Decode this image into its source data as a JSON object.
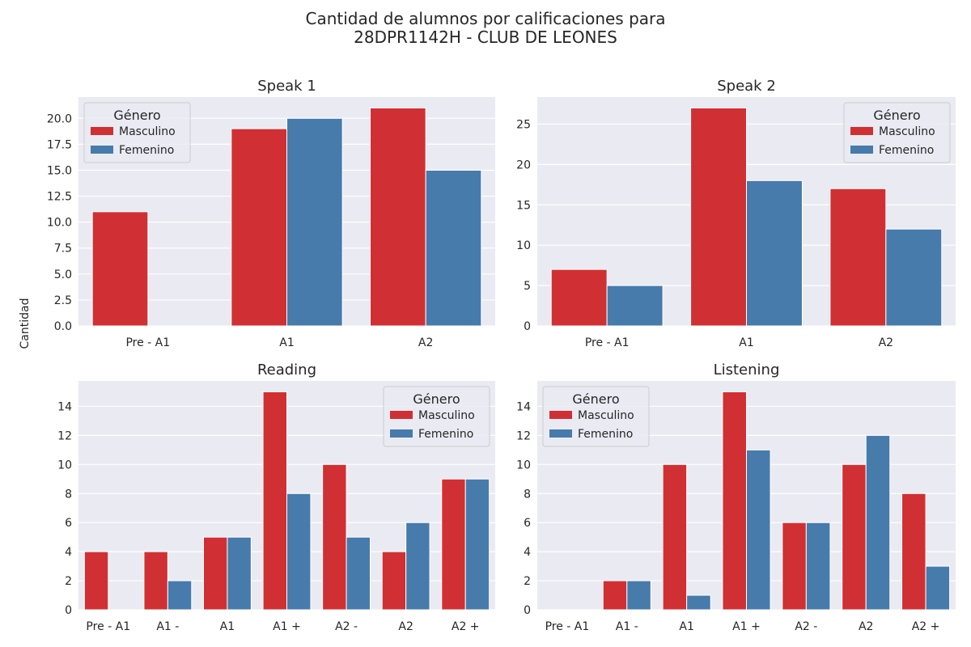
{
  "suptitle": {
    "line1": "Cantidad de alumnos por calificaciones para",
    "line2": "28DPR1142H - CLUB DE LEONES"
  },
  "ylabel": "Cantidad",
  "legend": {
    "title": "Género",
    "entries": [
      "Masculino",
      "Femenino"
    ]
  },
  "colors": {
    "masculino": "#d03033",
    "femenino": "#467bab",
    "plot_bg": "#eaeaf2",
    "grid": "#ffffff"
  },
  "chart_data": [
    {
      "type": "bar",
      "title": "Speak 1",
      "categories": [
        "Pre - A1",
        "A1",
        "A2"
      ],
      "series": [
        {
          "name": "Masculino",
          "values": [
            11,
            19,
            21
          ]
        },
        {
          "name": "Femenino",
          "values": [
            0,
            20,
            15
          ]
        }
      ],
      "ylim": [
        0,
        22.05
      ],
      "yticks": [
        "0.0",
        "2.5",
        "5.0",
        "7.5",
        "10.0",
        "12.5",
        "15.0",
        "17.5",
        "20.0"
      ],
      "ytick_values": [
        0,
        2.5,
        5,
        7.5,
        10,
        12.5,
        15,
        17.5,
        20
      ],
      "legend_position": "top-left",
      "grid": true
    },
    {
      "type": "bar",
      "title": "Speak 2",
      "categories": [
        "Pre - A1",
        "A1",
        "A2"
      ],
      "series": [
        {
          "name": "Masculino",
          "values": [
            7,
            27,
            17
          ]
        },
        {
          "name": "Femenino",
          "values": [
            5,
            18,
            12
          ]
        }
      ],
      "ylim": [
        0,
        28.35
      ],
      "yticks": [
        "0",
        "5",
        "10",
        "15",
        "20",
        "25"
      ],
      "ytick_values": [
        0,
        5,
        10,
        15,
        20,
        25
      ],
      "legend_position": "top-right",
      "grid": true
    },
    {
      "type": "bar",
      "title": "Reading",
      "categories": [
        "Pre - A1",
        "A1 -",
        "A1",
        "A1 +",
        "A2 -",
        "A2",
        "A2 +"
      ],
      "series": [
        {
          "name": "Masculino",
          "values": [
            4,
            4,
            5,
            15,
            10,
            4,
            9
          ]
        },
        {
          "name": "Femenino",
          "values": [
            0,
            2,
            5,
            8,
            5,
            6,
            9
          ]
        }
      ],
      "ylim": [
        0,
        15.75
      ],
      "yticks": [
        "0",
        "2",
        "4",
        "6",
        "8",
        "10",
        "12",
        "14"
      ],
      "ytick_values": [
        0,
        2,
        4,
        6,
        8,
        10,
        12,
        14
      ],
      "legend_position": "top-right",
      "grid": true
    },
    {
      "type": "bar",
      "title": "Listening",
      "categories": [
        "Pre - A1",
        "A1 -",
        "A1",
        "A1 +",
        "A2 -",
        "A2",
        "A2 +"
      ],
      "series": [
        {
          "name": "Masculino",
          "values": [
            0,
            2,
            10,
            15,
            6,
            10,
            8
          ]
        },
        {
          "name": "Femenino",
          "values": [
            0,
            2,
            1,
            11,
            6,
            12,
            3
          ]
        }
      ],
      "ylim": [
        0,
        15.75
      ],
      "yticks": [
        "0",
        "2",
        "4",
        "6",
        "8",
        "10",
        "12",
        "14"
      ],
      "ytick_values": [
        0,
        2,
        4,
        6,
        8,
        10,
        12,
        14
      ],
      "legend_position": "top-left",
      "grid": true
    }
  ]
}
